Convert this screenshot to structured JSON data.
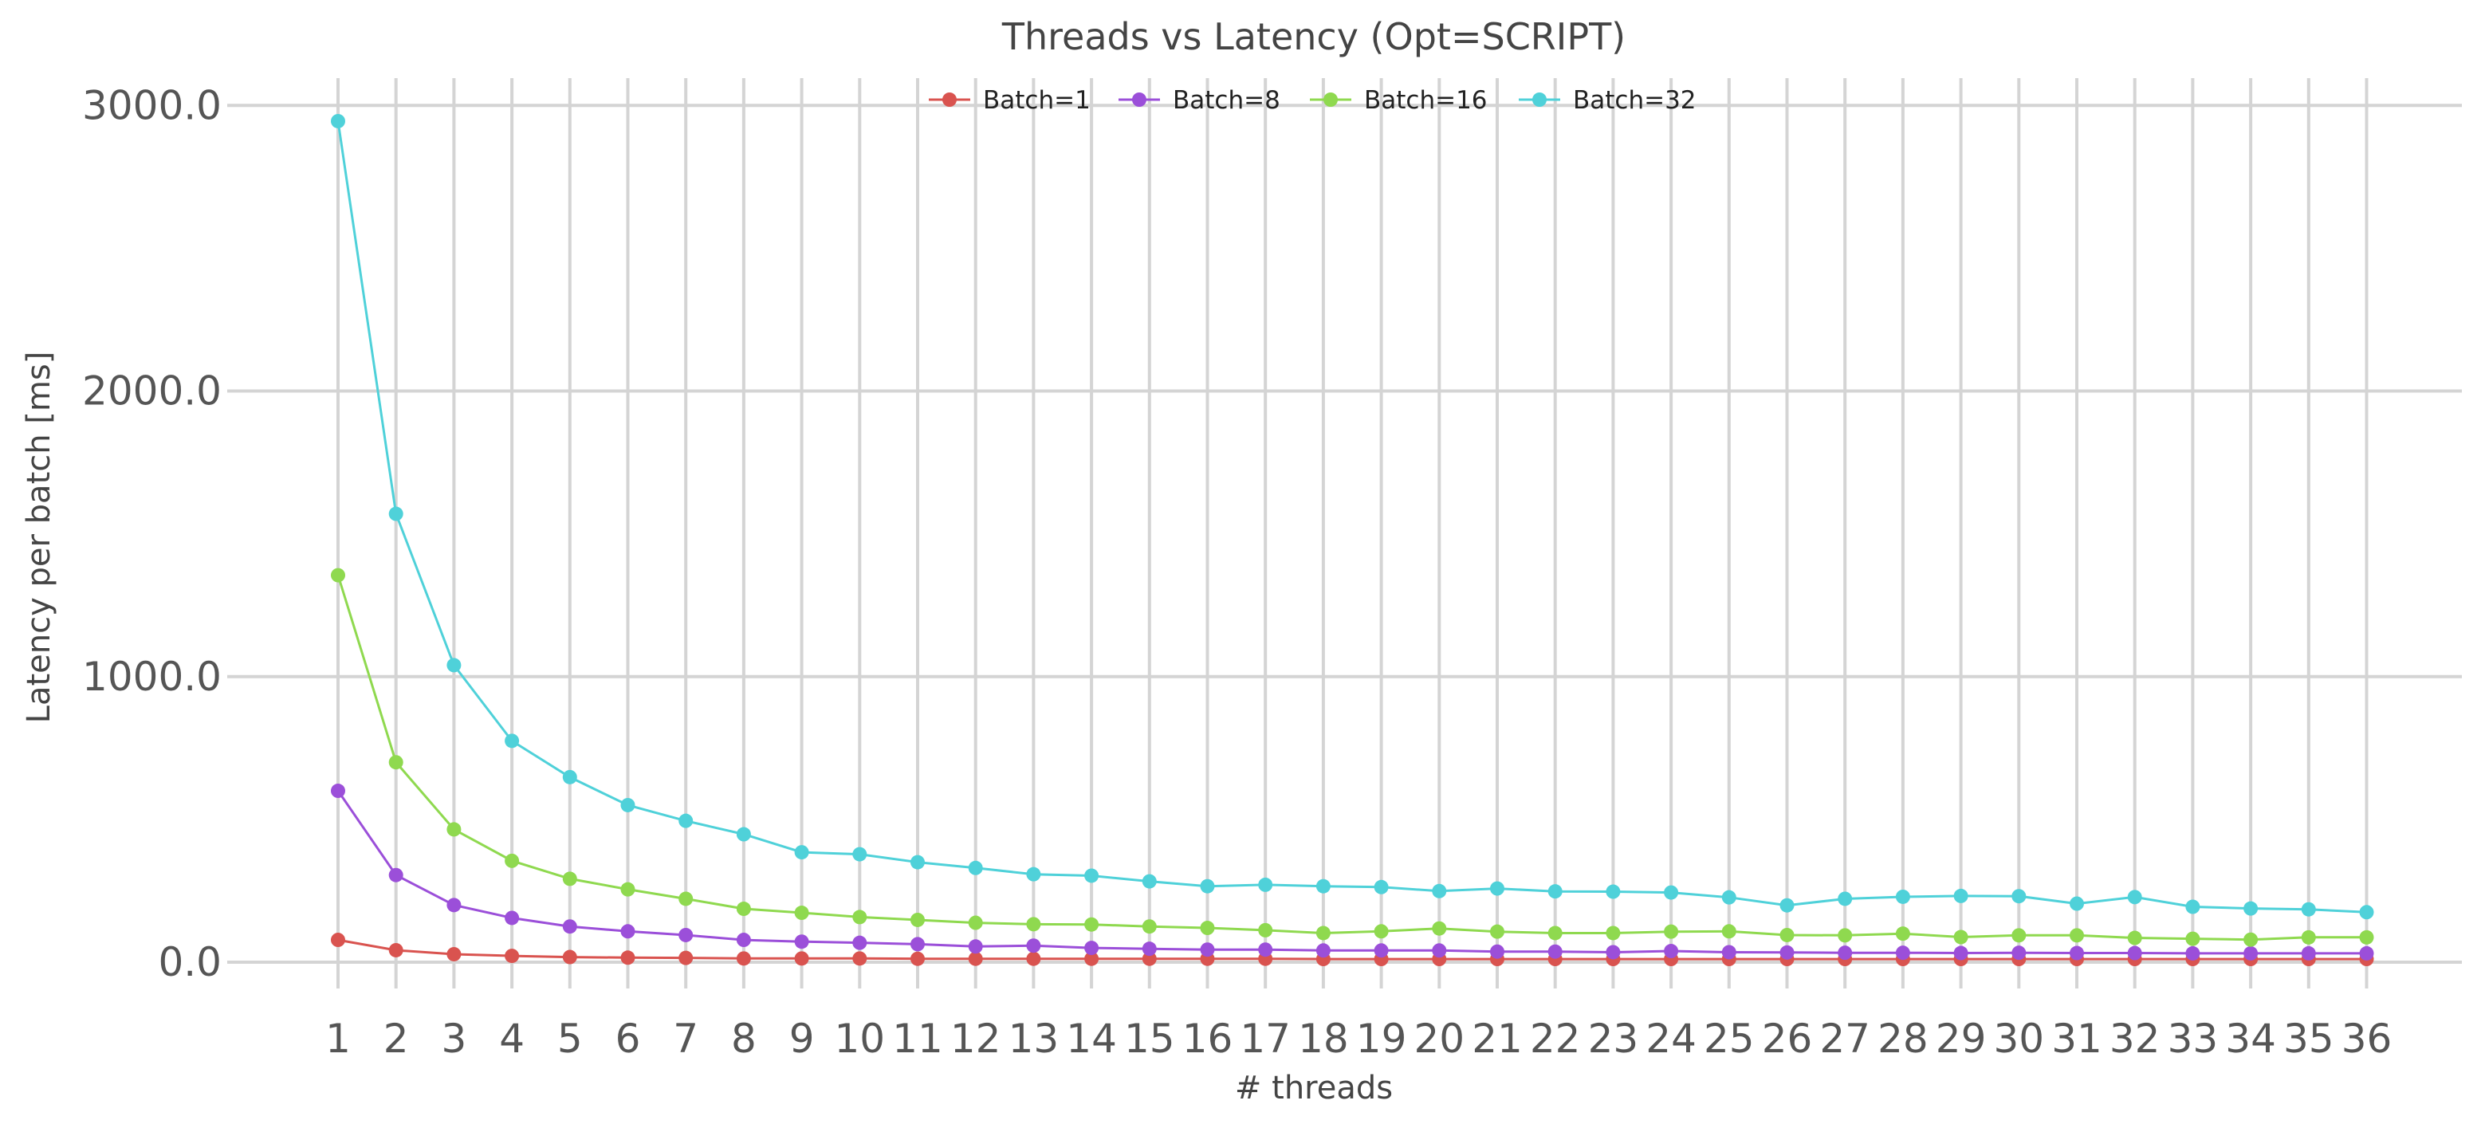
{
  "chart_data": {
    "type": "line",
    "title": "Threads vs Latency (Opt=SCRIPT)",
    "xlabel": "# threads",
    "ylabel": "Latency per batch [ms]",
    "x": [
      1,
      2,
      3,
      4,
      5,
      6,
      7,
      8,
      9,
      10,
      11,
      12,
      13,
      14,
      15,
      16,
      17,
      18,
      19,
      20,
      21,
      22,
      23,
      24,
      25,
      26,
      27,
      28,
      29,
      30,
      31,
      32,
      33,
      34,
      35,
      36
    ],
    "x_tick_labels": [
      "1",
      "2",
      "3",
      "4",
      "5",
      "6",
      "7",
      "8",
      "9",
      "10",
      "11",
      "12",
      "13",
      "14",
      "15",
      "16",
      "17",
      "18",
      "19",
      "20",
      "21",
      "22",
      "23",
      "24",
      "25",
      "26",
      "27",
      "28",
      "29",
      "30",
      "31",
      "32",
      "33",
      "34",
      "35",
      "36"
    ],
    "y_ticks": [
      0,
      1000,
      2000,
      3000
    ],
    "y_tick_labels": [
      "0.0",
      "1000.0",
      "2000.0",
      "3000.0"
    ],
    "ylim": [
      -100,
      3150
    ],
    "grid": true,
    "legend_position": "top-center",
    "series": [
      {
        "name": "Batch=1",
        "color": "#d9534f",
        "values": [
          78,
          42,
          28,
          22,
          18,
          16,
          15,
          13,
          13,
          13,
          12,
          12,
          12,
          12,
          12,
          12,
          12,
          11,
          11,
          11,
          11,
          11,
          11,
          11,
          11,
          11,
          11,
          11,
          11,
          11,
          11,
          11,
          11,
          11,
          11,
          11
        ]
      },
      {
        "name": "Batch=8",
        "color": "#9b4fd9",
        "values": [
          600,
          305,
          200,
          155,
          125,
          108,
          95,
          78,
          72,
          68,
          63,
          55,
          58,
          50,
          47,
          44,
          44,
          41,
          41,
          41,
          37,
          37,
          35,
          39,
          35,
          34,
          33,
          33,
          32,
          33,
          32,
          32,
          31,
          31,
          31,
          31
        ]
      },
      {
        "name": "Batch=16",
        "color": "#8fd94f",
        "values": [
          1355,
          700,
          465,
          355,
          292,
          255,
          222,
          187,
          173,
          158,
          148,
          138,
          133,
          132,
          125,
          120,
          112,
          102,
          108,
          118,
          107,
          102,
          102,
          107,
          108,
          95,
          94,
          100,
          88,
          94,
          94,
          85,
          82,
          79,
          87,
          87
        ]
      },
      {
        "name": "Batch=32",
        "color": "#4fd1d9",
        "values": [
          2945,
          1570,
          1040,
          775,
          648,
          550,
          495,
          448,
          385,
          378,
          350,
          330,
          308,
          303,
          283,
          266,
          271,
          266,
          263,
          249,
          258,
          248,
          247,
          244,
          227,
          199,
          222,
          229,
          232,
          231,
          205,
          228,
          194,
          188,
          185,
          175
        ]
      }
    ]
  }
}
